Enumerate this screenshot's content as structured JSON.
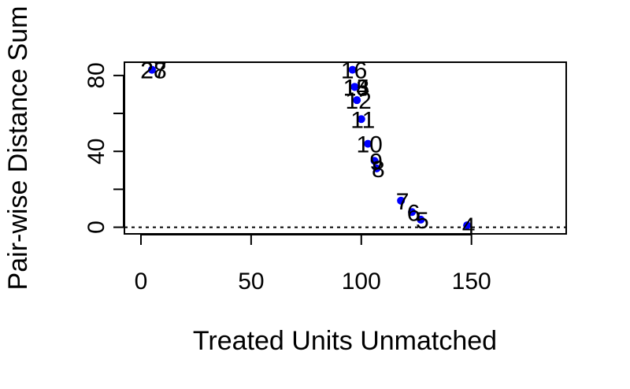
{
  "chart_data": {
    "type": "scatter",
    "title": "",
    "xlabel": "Treated Units Unmatched",
    "ylabel": "Pair-wise Distance Sum",
    "xlim": [
      -7.5,
      193
    ],
    "ylim": [
      -3.5,
      87
    ],
    "xticks": [
      0,
      50,
      100,
      150
    ],
    "yticks": [
      0,
      20,
      40,
      60,
      80
    ],
    "ytick_labels": [
      "0",
      "",
      "40",
      "",
      "80"
    ],
    "grid": false,
    "reference_line": {
      "y": 0,
      "style": "dotted"
    },
    "point_color": "#0000ff",
    "points": [
      {
        "label": "28",
        "x": 5,
        "y": 83
      },
      {
        "label": "27",
        "x": 5,
        "y": 83
      },
      {
        "label": "16",
        "x": 96,
        "y": 83
      },
      {
        "label": "15",
        "x": 97,
        "y": 74
      },
      {
        "label": "14",
        "x": 97,
        "y": 74
      },
      {
        "label": "13",
        "x": 97,
        "y": 74
      },
      {
        "label": "12",
        "x": 98,
        "y": 67
      },
      {
        "label": "11",
        "x": 100,
        "y": 57
      },
      {
        "label": "10",
        "x": 103,
        "y": 44
      },
      {
        "label": "9",
        "x": 106,
        "y": 35
      },
      {
        "label": "8",
        "x": 107,
        "y": 31
      },
      {
        "label": "7",
        "x": 118,
        "y": 14
      },
      {
        "label": "6",
        "x": 123,
        "y": 8
      },
      {
        "label": "5",
        "x": 127,
        "y": 4
      },
      {
        "label": "4",
        "x": 148,
        "y": 1
      }
    ]
  }
}
